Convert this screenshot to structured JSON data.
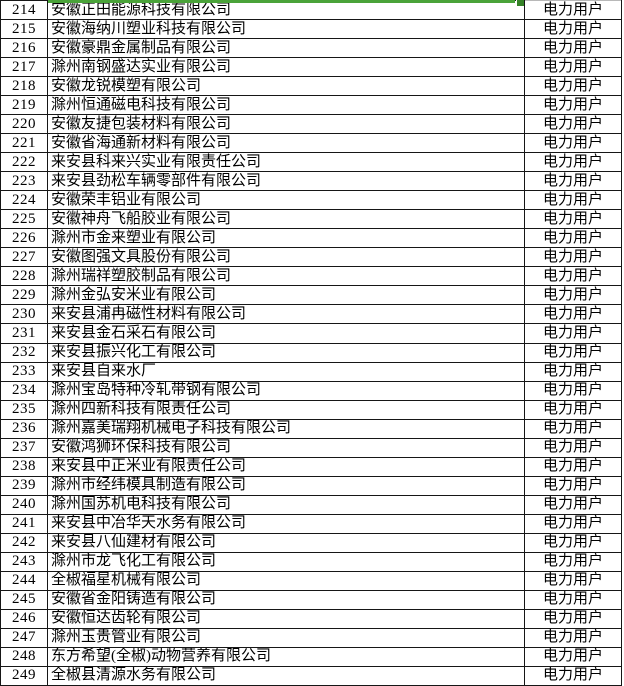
{
  "table": {
    "columns": [
      "row_number",
      "company_name",
      "user_category"
    ],
    "rows": [
      {
        "index": "214",
        "company": "安徽正田能源科技有限公司",
        "category": "电力用户"
      },
      {
        "index": "215",
        "company": "安徽海纳川塑业科技有限公司",
        "category": "电力用户"
      },
      {
        "index": "216",
        "company": "安徽豪鼎金属制品有限公司",
        "category": "电力用户"
      },
      {
        "index": "217",
        "company": "滁州南钢盛达实业有限公司",
        "category": "电力用户"
      },
      {
        "index": "218",
        "company": "安徽龙锐模塑有限公司",
        "category": "电力用户"
      },
      {
        "index": "219",
        "company": "滁州恒通磁电科技有限公司",
        "category": "电力用户"
      },
      {
        "index": "220",
        "company": "安徽友捷包装材料有限公司",
        "category": "电力用户"
      },
      {
        "index": "221",
        "company": "安徽省海通新材料有限公司",
        "category": "电力用户"
      },
      {
        "index": "222",
        "company": "来安县科来兴实业有限责任公司",
        "category": "电力用户"
      },
      {
        "index": "223",
        "company": "来安县劲松车辆零部件有限公司",
        "category": "电力用户"
      },
      {
        "index": "224",
        "company": "安徽荣丰铝业有限公司",
        "category": "电力用户"
      },
      {
        "index": "225",
        "company": "安徽神舟飞船胶业有限公司",
        "category": "电力用户"
      },
      {
        "index": "226",
        "company": "滁州市金来塑业有限公司",
        "category": "电力用户"
      },
      {
        "index": "227",
        "company": "安徽图强文具股份有限公司",
        "category": "电力用户"
      },
      {
        "index": "228",
        "company": "滁州瑞祥塑胶制品有限公司",
        "category": "电力用户"
      },
      {
        "index": "229",
        "company": "滁州金弘安米业有限公司",
        "category": "电力用户"
      },
      {
        "index": "230",
        "company": "来安县浦冉磁性材料有限公司",
        "category": "电力用户"
      },
      {
        "index": "231",
        "company": "来安县金石采石有限公司",
        "category": "电力用户"
      },
      {
        "index": "232",
        "company": "来安县振兴化工有限公司",
        "category": "电力用户"
      },
      {
        "index": "233",
        "company": "来安县自来水厂",
        "category": "电力用户"
      },
      {
        "index": "234",
        "company": "滁州宝岛特种冷轧带钢有限公司",
        "category": "电力用户"
      },
      {
        "index": "235",
        "company": "滁州四新科技有限责任公司",
        "category": "电力用户"
      },
      {
        "index": "236",
        "company": "滁州嘉美瑞翔机械电子科技有限公司",
        "category": "电力用户"
      },
      {
        "index": "237",
        "company": "安徽鸿狮环保科技有限公司",
        "category": "电力用户"
      },
      {
        "index": "238",
        "company": "来安县中正米业有限责任公司",
        "category": "电力用户"
      },
      {
        "index": "239",
        "company": "滁州市经纬模具制造有限公司",
        "category": "电力用户"
      },
      {
        "index": "240",
        "company": "滁州国苏机电科技有限公司",
        "category": "电力用户"
      },
      {
        "index": "241",
        "company": "来安县中冶华天水务有限公司",
        "category": "电力用户"
      },
      {
        "index": "242",
        "company": "来安县八仙建材有限公司",
        "category": "电力用户"
      },
      {
        "index": "243",
        "company": "滁州市龙飞化工有限公司",
        "category": "电力用户"
      },
      {
        "index": "244",
        "company": "全椒福星机械有限公司",
        "category": "电力用户"
      },
      {
        "index": "245",
        "company": "安徽省金阳铸造有限公司",
        "category": "电力用户"
      },
      {
        "index": "246",
        "company": "安徽恒达齿轮有限公司",
        "category": "电力用户"
      },
      {
        "index": "247",
        "company": "滁州玉贵管业有限公司",
        "category": "电力用户"
      },
      {
        "index": "248",
        "company": "东方希望(全椒)动物营养有限公司",
        "category": "电力用户"
      },
      {
        "index": "249",
        "company": "全椒县清源水务有限公司",
        "category": "电力用户"
      }
    ]
  },
  "selection": {
    "border_color": "#4aa339",
    "fill_handle_color": "#358227"
  },
  "colors": {
    "grid_line": "#161616",
    "faint_grid_line": "#b8b8b8",
    "background": "#ffffff",
    "text": "#000000"
  }
}
